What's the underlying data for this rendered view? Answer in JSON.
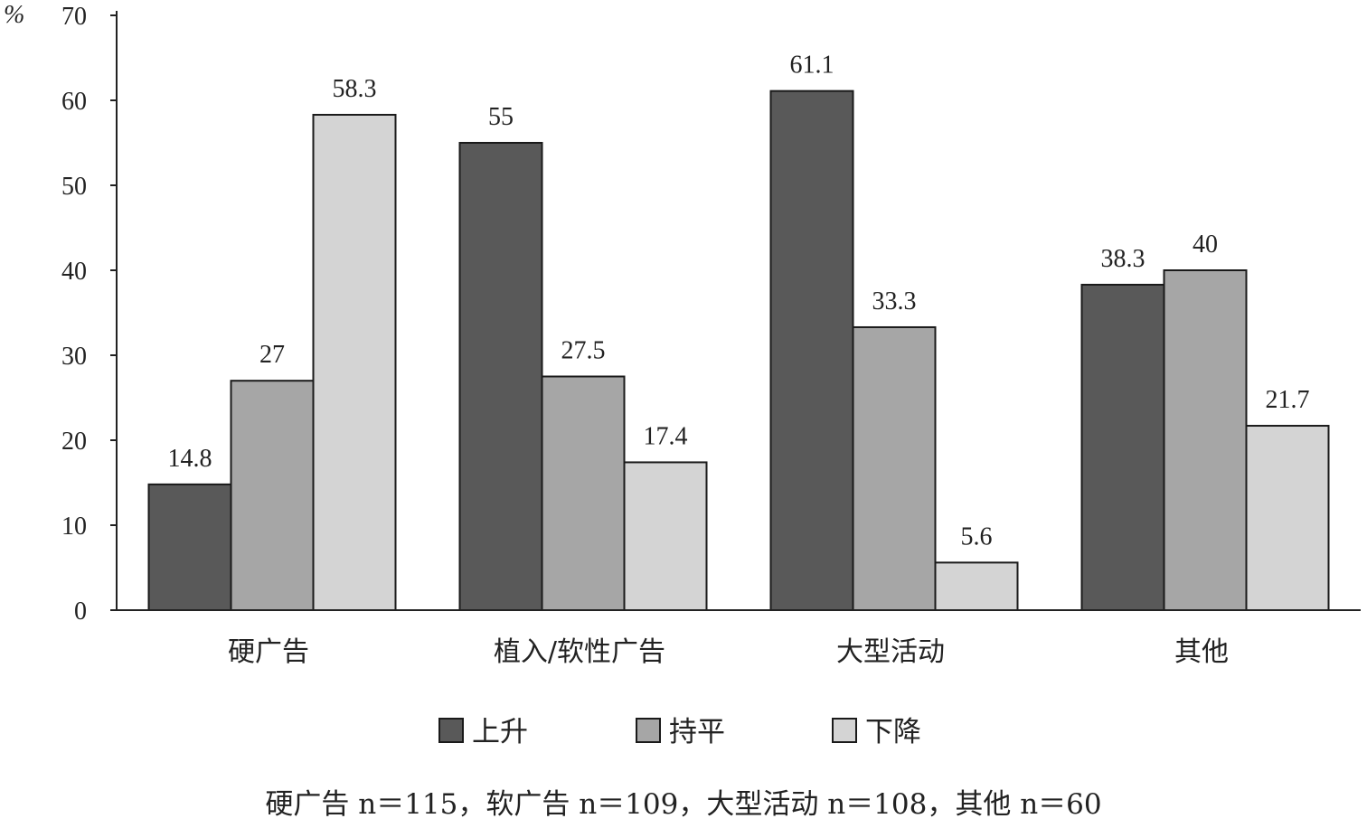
{
  "chart_data": {
    "type": "bar",
    "y_unit": "%",
    "categories": [
      "硬广告",
      "植入/软性广告",
      "大型活动",
      "其他"
    ],
    "series": [
      {
        "name": "上升",
        "color": "#595959",
        "values": [
          14.8,
          55,
          61.1,
          38.3
        ]
      },
      {
        "name": "持平",
        "color": "#a6a6a6",
        "values": [
          27,
          27.5,
          33.3,
          40
        ]
      },
      {
        "name": "下降",
        "color": "#d4d4d4",
        "values": [
          58.3,
          17.4,
          5.6,
          21.7
        ]
      }
    ],
    "value_labels": [
      [
        "14.8",
        "55",
        "61.1",
        "38.3"
      ],
      [
        "27",
        "27.5",
        "33.3",
        "40"
      ],
      [
        "58.3",
        "17.4",
        "5.6",
        "21.7"
      ]
    ],
    "ylim": [
      0,
      70
    ],
    "yticks": [
      0,
      10,
      20,
      30,
      40,
      50,
      60,
      70
    ],
    "ytick_labels": [
      "0",
      "10",
      "20",
      "30",
      "40",
      "50",
      "60",
      "70"
    ],
    "grid": false,
    "legend_position": "bottom",
    "note": "硬广告 n＝115，软广告 n＝109，大型活动 n＝108，其他 n＝60"
  }
}
